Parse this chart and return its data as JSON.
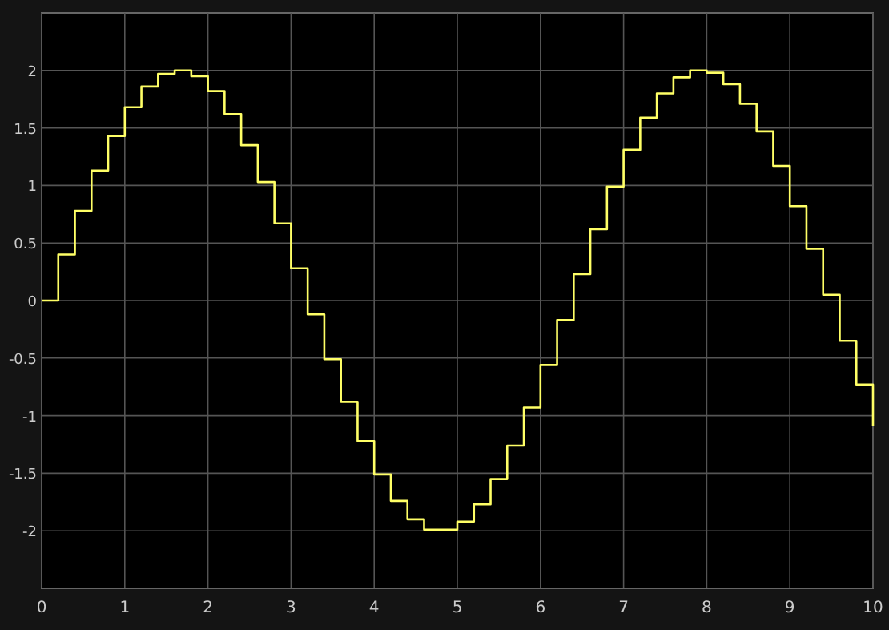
{
  "chart_data": {
    "type": "step",
    "x": [
      0,
      0.2,
      0.4,
      0.6,
      0.8,
      1,
      1.2,
      1.4,
      1.6,
      1.8,
      2,
      2.2,
      2.4,
      2.6,
      2.8,
      3,
      3.2,
      3.4,
      3.6,
      3.8,
      4,
      4.2,
      4.4,
      4.6,
      4.8,
      5,
      5.2,
      5.4,
      5.6,
      5.8,
      6,
      6.2,
      6.4,
      6.6,
      6.8,
      7,
      7.2,
      7.4,
      7.6,
      7.8,
      8,
      8.2,
      8.4,
      8.6,
      8.8,
      9,
      9.2,
      9.4,
      9.6,
      9.8,
      10
    ],
    "series": [
      {
        "color": "#ffff66",
        "values": [
          0,
          0.4,
          0.78,
          1.13,
          1.43,
          1.68,
          1.86,
          1.97,
          2,
          1.95,
          1.82,
          1.62,
          1.35,
          1.03,
          0.67,
          0.28,
          -0.12,
          -0.51,
          -0.88,
          -1.22,
          -1.51,
          -1.74,
          -1.9,
          -1.99,
          -1.99,
          -1.92,
          -1.77,
          -1.55,
          -1.26,
          -0.93,
          -0.56,
          -0.17,
          0.23,
          0.62,
          0.99,
          1.31,
          1.59,
          1.8,
          1.94,
          2,
          1.98,
          1.88,
          1.71,
          1.47,
          1.17,
          0.82,
          0.45,
          0.05,
          -0.35,
          -0.73,
          -1.09
        ]
      }
    ],
    "xlim": [
      0,
      10
    ],
    "xticks": [
      0,
      1,
      2,
      3,
      4,
      5,
      6,
      7,
      8,
      9,
      10
    ],
    "ylim": [
      -2.5,
      2.5
    ],
    "yticks": [
      -2,
      -1.5,
      -1,
      -0.5,
      0,
      0.5,
      1,
      1.5,
      2
    ],
    "grid": true,
    "marker": "none",
    "line_style": "solid"
  }
}
